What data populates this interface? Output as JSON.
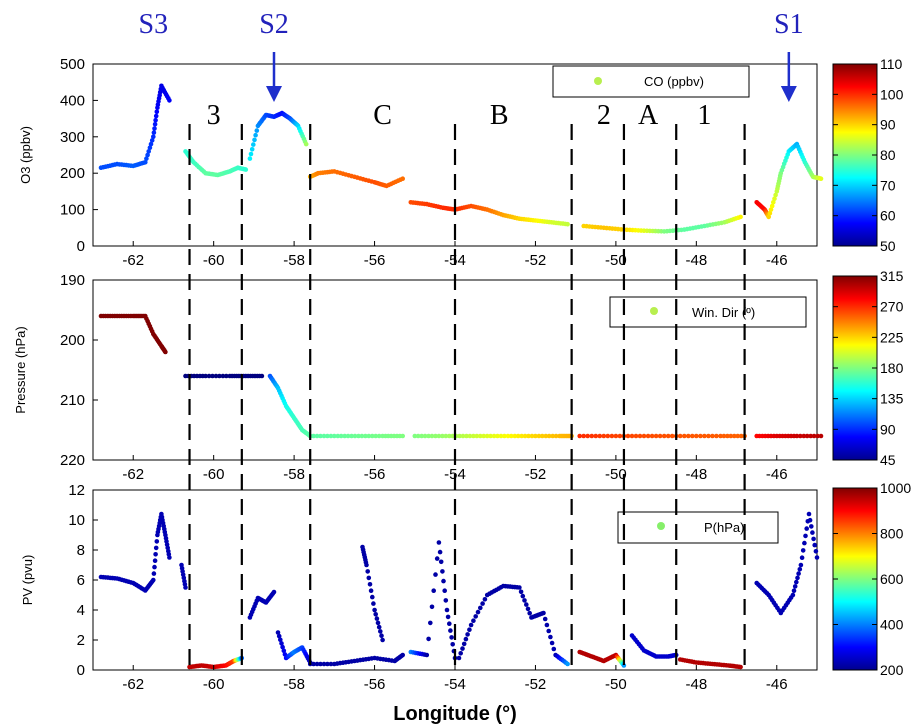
{
  "chart_data": {
    "type": "scatter",
    "xlabel": "Longitude (°)",
    "xlim": [
      -63,
      -45
    ],
    "x_ticks": [
      "-62",
      "-60",
      "-58",
      "-56",
      "-54",
      "-52",
      "-50",
      "-48",
      "-46"
    ],
    "x_tick_values": [
      -62,
      -60,
      -58,
      -56,
      -54,
      -52,
      -50,
      -48,
      -46
    ],
    "region_labels": [
      "3",
      "C",
      "B",
      "2",
      "A",
      "1"
    ],
    "region_label_lon": [
      -60.0,
      -55.8,
      -52.9,
      -50.3,
      -49.2,
      -47.8
    ],
    "dashed_lines_lon": [
      -60.6,
      -59.3,
      -57.6,
      -54.0,
      -51.1,
      -49.8,
      -48.5,
      -46.8
    ],
    "events": [
      {
        "label": "S3",
        "lon": -61.5
      },
      {
        "label": "S2",
        "lon": -58.5
      },
      {
        "label": "S1",
        "lon": -45.7
      }
    ],
    "panels": [
      {
        "name": "o3",
        "ylabel": "O3 (ppbv)",
        "ylim": [
          0,
          500
        ],
        "y_ticks": [
          "0",
          "100",
          "200",
          "300",
          "400",
          "500"
        ],
        "y_tick_values": [
          0,
          100,
          200,
          300,
          400,
          500
        ],
        "legend": "CO (ppbv)",
        "colorbar_ticks": [
          "110",
          "100",
          "90",
          "80",
          "70",
          "60",
          "50"
        ],
        "colorbar_values": [
          110,
          100,
          90,
          80,
          70,
          60,
          50
        ],
        "segments": [
          {
            "x": [
              -62.8,
              -62.4,
              -62.0,
              -61.7,
              -61.5,
              -61.4,
              -61.3,
              -61.1
            ],
            "y": [
              215,
              225,
              220,
              230,
              300,
              380,
              440,
              400
            ],
            "c": [
              62,
              62,
              63,
              62,
              60,
              57,
              56,
              57
            ]
          },
          {
            "x": [
              -60.7,
              -60.5,
              -60.2,
              -59.9,
              -59.6,
              -59.4,
              -59.2
            ],
            "y": [
              260,
              230,
              200,
              195,
              205,
              215,
              210
            ],
            "c": [
              75,
              76,
              78,
              78,
              77,
              76,
              75
            ]
          },
          {
            "x": [
              -59.1,
              -58.9,
              -58.7,
              -58.5,
              -58.3,
              -58.1,
              -57.9,
              -57.7
            ],
            "y": [
              240,
              330,
              360,
              355,
              365,
              350,
              330,
              280
            ],
            "c": [
              72,
              66,
              62,
              60,
              58,
              62,
              70,
              82
            ]
          },
          {
            "x": [
              -57.6,
              -57.4,
              -57.0,
              -56.5,
              -56.0,
              -55.7,
              -55.3
            ],
            "y": [
              190,
              200,
              205,
              190,
              175,
              165,
              185
            ],
            "c": [
              92,
              95,
              96,
              97,
              98,
              97,
              96
            ]
          },
          {
            "x": [
              -55.1,
              -54.7,
              -54.3,
              -54.0,
              -53.6,
              -53.2,
              -52.8,
              -52.4,
              -52.0,
              -51.6,
              -51.2
            ],
            "y": [
              120,
              115,
              105,
              100,
              110,
              100,
              85,
              75,
              70,
              65,
              60
            ],
            "c": [
              98,
              99,
              100,
              100,
              98,
              96,
              93,
              90,
              88,
              85,
              84
            ]
          },
          {
            "x": [
              -50.8,
              -50.3,
              -49.8,
              -49.3,
              -48.8,
              -48.3,
              -47.8,
              -47.3,
              -46.9
            ],
            "y": [
              55,
              50,
              45,
              42,
              40,
              45,
              55,
              65,
              80
            ],
            "c": [
              90,
              91,
              90,
              86,
              80,
              78,
              78,
              82,
              88
            ]
          },
          {
            "x": [
              -46.5,
              -46.3,
              -46.2,
              -46.0,
              -45.9,
              -45.7,
              -45.5,
              -45.3,
              -45.1,
              -44.9
            ],
            "y": [
              120,
              100,
              80,
              150,
              200,
              260,
              280,
              230,
              190,
              185
            ],
            "c": [
              103,
              102,
              90,
              84,
              80,
              72,
              68,
              75,
              82,
              86
            ]
          }
        ]
      },
      {
        "name": "pressure",
        "ylabel": "Pressure (hPa)",
        "ylim": [
          190,
          220
        ],
        "y_inverted": true,
        "y_ticks": [
          "190",
          "200",
          "210",
          "220"
        ],
        "y_tick_values": [
          190,
          200,
          210,
          220
        ],
        "legend": "Win. Dir (º)",
        "colorbar_ticks": [
          "315",
          "270",
          "225",
          "180",
          "135",
          "90",
          "45"
        ],
        "colorbar_values": [
          315,
          270,
          225,
          180,
          135,
          90,
          45
        ],
        "segments": [
          {
            "x": [
              -62.8,
              -62.4,
              -62.0,
              -61.7,
              -61.5,
              -61.3,
              -61.2
            ],
            "y": [
              196,
              196,
              196,
              196,
              199,
              201,
              202
            ],
            "c": [
              330,
              330,
              330,
              330,
              330,
              330,
              330
            ]
          },
          {
            "x": [
              -60.7,
              -60.2,
              -59.6,
              -59.2,
              -58.8
            ],
            "y": [
              206,
              206,
              206,
              206,
              206
            ],
            "c": [
              40,
              40,
              40,
              40,
              40
            ]
          },
          {
            "x": [
              -58.6,
              -58.4,
              -58.2,
              -58.0,
              -57.8,
              -57.6
            ],
            "y": [
              206,
              208,
              211,
              213,
              215,
              216
            ],
            "c": [
              100,
              130,
              150,
              160,
              165,
              170
            ]
          },
          {
            "x": [
              -57.6,
              -57.0,
              -56.4,
              -55.8,
              -55.3
            ],
            "y": [
              216,
              216,
              216,
              216,
              216
            ],
            "c": [
              170,
              172,
              175,
              178,
              180
            ]
          },
          {
            "x": [
              -55.0,
              -54.4,
              -53.8,
              -53.2,
              -52.6,
              -52.0,
              -51.4,
              -51.1
            ],
            "y": [
              216,
              216,
              216,
              216,
              216,
              216,
              216,
              216
            ],
            "c": [
              180,
              185,
              195,
              205,
              215,
              225,
              232,
              235
            ]
          },
          {
            "x": [
              -50.9,
              -50.2,
              -49.5,
              -48.8,
              -48.1,
              -47.4,
              -46.8
            ],
            "y": [
              216,
              216,
              216,
              216,
              216,
              216,
              216
            ],
            "c": [
              270,
              265,
              262,
              260,
              258,
              257,
              255
            ]
          },
          {
            "x": [
              -46.5,
              -46.0,
              -45.5,
              -44.9
            ],
            "y": [
              216,
              216,
              216,
              216
            ],
            "c": [
              280,
              290,
              295,
              300
            ]
          }
        ]
      },
      {
        "name": "pv",
        "ylabel": "PV (pvu)",
        "ylim": [
          0,
          12
        ],
        "y_ticks": [
          "0",
          "2",
          "4",
          "6",
          "8",
          "10",
          "12"
        ],
        "y_tick_values": [
          0,
          2,
          4,
          6,
          8,
          10,
          12
        ],
        "legend": "P(hPa)",
        "colorbar_ticks": [
          "1000",
          "800",
          "600",
          "400",
          "200"
        ],
        "colorbar_values": [
          1000,
          800,
          600,
          400,
          200
        ],
        "segments": [
          {
            "x": [
              -62.8,
              -62.4,
              -62.0,
              -61.7,
              -61.5,
              -61.4,
              -61.3,
              -61.2,
              -61.1
            ],
            "y": [
              6.2,
              6.1,
              5.8,
              5.3,
              6.0,
              9.0,
              10.4,
              9.0,
              7.5
            ],
            "c": [
              240,
              240,
              240,
              240,
              240,
              240,
              240,
              240,
              240
            ]
          },
          {
            "x": [
              -60.8,
              -60.7
            ],
            "y": [
              7.0,
              5.5
            ],
            "c": [
              240,
              240
            ]
          },
          {
            "x": [
              -60.6,
              -60.3,
              -60.0,
              -59.7,
              -59.5,
              -59.3
            ],
            "y": [
              0.2,
              0.3,
              0.2,
              0.3,
              0.6,
              0.8
            ],
            "c": [
              950,
              950,
              940,
              900,
              850,
              380
            ]
          },
          {
            "x": [
              -59.1,
              -58.9,
              -58.7,
              -58.5
            ],
            "y": [
              3.5,
              4.8,
              4.5,
              5.2
            ],
            "c": [
              240,
              240,
              240,
              240
            ]
          },
          {
            "x": [
              -58.4,
              -58.2,
              -58.0,
              -57.8,
              -57.6
            ],
            "y": [
              2.5,
              0.8,
              1.2,
              1.5,
              0.5
            ],
            "c": [
              240,
              300,
              400,
              350,
              240
            ]
          },
          {
            "x": [
              -57.6,
              -57.0,
              -56.5,
              -56.0,
              -55.5,
              -55.3
            ],
            "y": [
              0.4,
              0.4,
              0.6,
              0.8,
              0.6,
              1.0
            ],
            "c": [
              230,
              230,
              230,
              230,
              230,
              230
            ]
          },
          {
            "x": [
              -56.3,
              -56.2,
              -56.0,
              -55.8
            ],
            "y": [
              8.2,
              7.0,
              4.0,
              2.0
            ],
            "c": [
              230,
              230,
              230,
              230
            ]
          },
          {
            "x": [
              -55.1,
              -54.7,
              -54.4,
              -54.2,
              -54.0
            ],
            "y": [
              1.2,
              1.0,
              8.5,
              4.0,
              0.8
            ],
            "c": [
              400,
              230,
              230,
              230,
              230
            ]
          },
          {
            "x": [
              -53.9,
              -53.6,
              -53.2,
              -52.8,
              -52.4,
              -52.1,
              -51.8,
              -51.5,
              -51.2
            ],
            "y": [
              0.8,
              3.0,
              5.0,
              5.6,
              5.5,
              3.5,
              3.8,
              1.0,
              0.4
            ],
            "c": [
              230,
              230,
              230,
              230,
              230,
              230,
              230,
              240,
              420
            ]
          },
          {
            "x": [
              -50.9,
              -50.6,
              -50.3,
              -50.0,
              -49.8
            ],
            "y": [
              1.2,
              0.9,
              0.6,
              1.0,
              0.3
            ],
            "c": [
              960,
              960,
              960,
              950,
              420
            ]
          },
          {
            "x": [
              -49.6,
              -49.3,
              -49.0,
              -48.7,
              -48.5
            ],
            "y": [
              2.3,
              1.3,
              0.9,
              0.9,
              1.0
            ],
            "c": [
              260,
              260,
              260,
              260,
              260
            ]
          },
          {
            "x": [
              -48.4,
              -48.0,
              -47.6,
              -47.2,
              -46.9
            ],
            "y": [
              0.7,
              0.5,
              0.4,
              0.3,
              0.2
            ],
            "c": [
              960,
              960,
              960,
              960,
              960
            ]
          },
          {
            "x": [
              -46.5,
              -46.2,
              -45.9,
              -45.6,
              -45.4,
              -45.2,
              -45.0
            ],
            "y": [
              5.8,
              5.0,
              3.8,
              5.0,
              7.0,
              10.4,
              7.5
            ],
            "c": [
              240,
              240,
              240,
              240,
              240,
              240,
              240
            ]
          }
        ]
      }
    ]
  }
}
